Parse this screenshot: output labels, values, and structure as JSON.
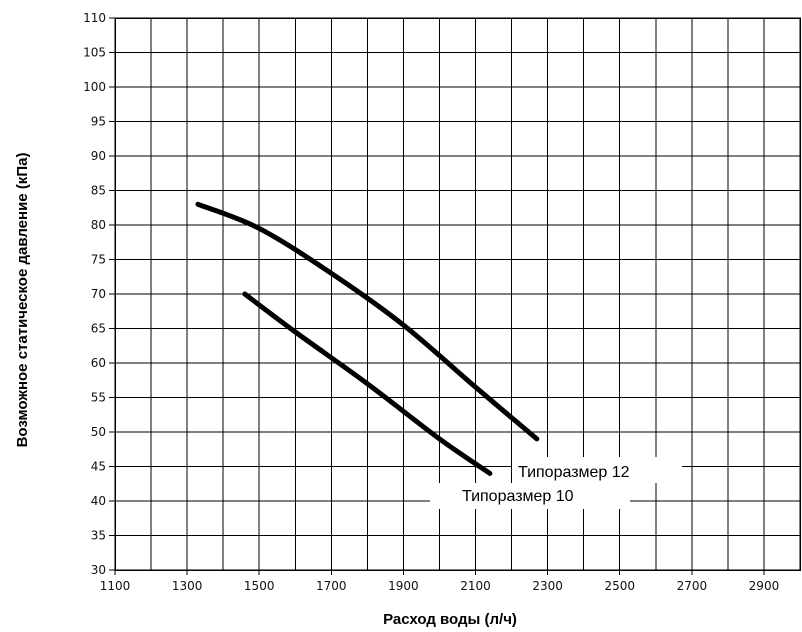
{
  "chart_data": {
    "type": "line",
    "xlabel": "Расход воды (л/ч)",
    "ylabel": "Возможное статическое давление (кПа)",
    "xlim": [
      1100,
      3000
    ],
    "ylim": [
      30,
      110
    ],
    "x_ticks": [
      1100,
      1300,
      1500,
      1700,
      1900,
      2100,
      2300,
      2500,
      2700,
      2900
    ],
    "y_ticks": [
      30,
      35,
      40,
      45,
      50,
      55,
      60,
      65,
      70,
      75,
      80,
      85,
      90,
      95,
      100,
      105,
      110
    ],
    "x_minor_gridlines": [
      1200,
      1400,
      1600,
      1800,
      2000,
      2200,
      2400,
      2600,
      2800
    ],
    "grid": true,
    "legend": "none",
    "series": [
      {
        "name": "Типоразмер 12",
        "x": [
          1330,
          1500,
          1700,
          1900,
          2100,
          2270
        ],
        "y": [
          83,
          79.5,
          73,
          65.5,
          56.5,
          49
        ]
      },
      {
        "name": "Типоразмер 10",
        "x": [
          1460,
          1600,
          1800,
          2000,
          2140
        ],
        "y": [
          70,
          64.5,
          57,
          49,
          44
        ]
      }
    ]
  }
}
